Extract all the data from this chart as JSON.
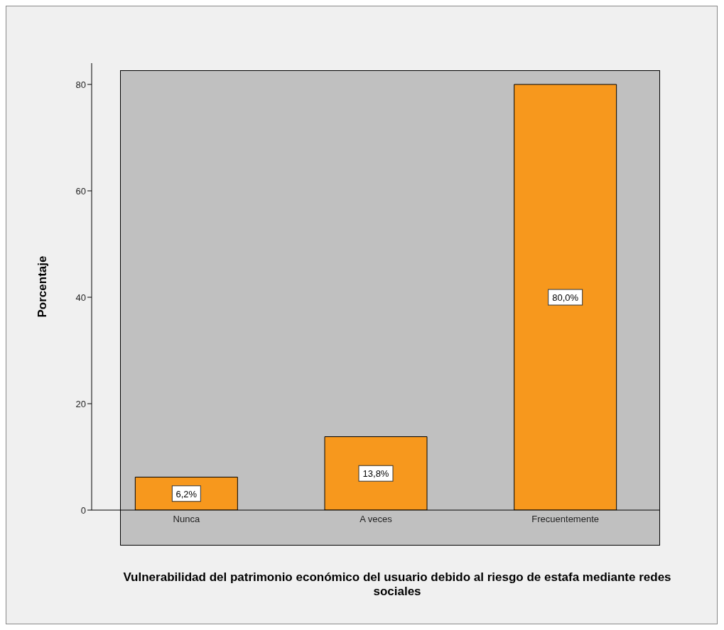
{
  "chart_data": {
    "type": "bar",
    "xlabel": "Vulnerabilidad del patrimonio económico del usuario debido al riesgo de estafa mediante redes sociales",
    "ylabel": "Porcentaje",
    "categories": [
      "Nunca",
      "A veces",
      "Frecuentemente"
    ],
    "values": [
      6.2,
      13.8,
      80.0
    ],
    "value_labels": [
      "6,2%",
      "13,8%",
      "80,0%"
    ],
    "color": "#f7981d",
    "ylim": [
      0,
      84
    ],
    "yticks": [
      0,
      20,
      40,
      60,
      80
    ]
  }
}
